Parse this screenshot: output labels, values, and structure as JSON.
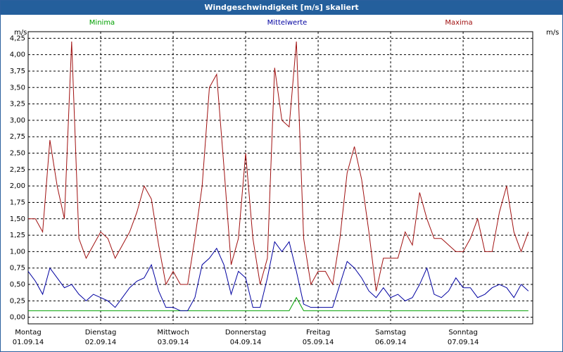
{
  "chart_data": {
    "type": "line",
    "title": "Windgeschwindigkeit [m/s] skaliert",
    "unit": "m/s",
    "grid": true,
    "xlim": [
      0,
      6.96
    ],
    "xticks": [
      {
        "value": 0,
        "label": "Montag\n01.09.14"
      },
      {
        "value": 1,
        "label": "Dienstag\n02.09.14"
      },
      {
        "value": 2,
        "label": "Mittwoch\n03.09.14"
      },
      {
        "value": 3,
        "label": "Donnerstag\n04.09.14"
      },
      {
        "value": 4,
        "label": "Freitag\n05.09.14"
      },
      {
        "value": 5,
        "label": "Samstag\n06.09.14"
      },
      {
        "value": 6,
        "label": "Sonntag\n07.09.14"
      }
    ],
    "ylim": [
      -0.1,
      4.35
    ],
    "yticks": [
      {
        "value": 0,
        "label": "0,00"
      },
      {
        "value": 0.25,
        "label": "0,25"
      },
      {
        "value": 0.5,
        "label": "0,50"
      },
      {
        "value": 0.75,
        "label": "0,75"
      },
      {
        "value": 1,
        "label": "1,00"
      },
      {
        "value": 1.25,
        "label": "1,25"
      },
      {
        "value": 1.5,
        "label": "1,50"
      },
      {
        "value": 1.75,
        "label": "1,75"
      },
      {
        "value": 2,
        "label": "2,00"
      },
      {
        "value": 2.25,
        "label": "2,25"
      },
      {
        "value": 2.5,
        "label": "2,50"
      },
      {
        "value": 2.75,
        "label": "2,75"
      },
      {
        "value": 3,
        "label": "3,00"
      },
      {
        "value": 3.25,
        "label": "3,25"
      },
      {
        "value": 3.5,
        "label": "3,50"
      },
      {
        "value": 3.75,
        "label": "3,75"
      },
      {
        "value": 4,
        "label": "4,00"
      },
      {
        "value": 4.25,
        "label": "4,25"
      }
    ],
    "x": [
      0,
      0.1,
      0.2,
      0.3,
      0.4,
      0.5,
      0.6,
      0.7,
      0.8,
      0.9,
      1,
      1.1,
      1.2,
      1.3,
      1.4,
      1.5,
      1.6,
      1.7,
      1.8,
      1.9,
      2,
      2.1,
      2.2,
      2.3,
      2.4,
      2.5,
      2.6,
      2.7,
      2.8,
      2.9,
      3,
      3.1,
      3.2,
      3.3,
      3.4,
      3.5,
      3.6,
      3.7,
      3.8,
      3.9,
      4,
      4.1,
      4.2,
      4.3,
      4.4,
      4.5,
      4.6,
      4.7,
      4.8,
      4.9,
      5,
      5.1,
      5.2,
      5.3,
      5.4,
      5.5,
      5.6,
      5.7,
      5.8,
      5.9,
      6,
      6.1,
      6.2,
      6.3,
      6.4,
      6.5,
      6.6,
      6.7,
      6.8,
      6.9
    ],
    "series": [
      {
        "name": "Minima",
        "color": "#00a000",
        "values": [
          0.1,
          0.1,
          0.1,
          0.1,
          0.1,
          0.1,
          0.1,
          0.1,
          0.1,
          0.1,
          0.1,
          0.1,
          0.1,
          0.1,
          0.1,
          0.1,
          0.1,
          0.1,
          0.1,
          0.1,
          0.1,
          0.1,
          0.1,
          0.1,
          0.1,
          0.1,
          0.1,
          0.1,
          0.1,
          0.1,
          0.1,
          0.1,
          0.1,
          0.1,
          0.1,
          0.1,
          0.1,
          0.3,
          0.1,
          0.1,
          0.1,
          0.1,
          0.1,
          0.1,
          0.1,
          0.1,
          0.1,
          0.1,
          0.1,
          0.1,
          0.1,
          0.1,
          0.1,
          0.1,
          0.1,
          0.1,
          0.1,
          0.1,
          0.1,
          0.1,
          0.1,
          0.1,
          0.1,
          0.1,
          0.1,
          0.1,
          0.1,
          0.1,
          0.1,
          0.1
        ]
      },
      {
        "name": "Mittelwerte",
        "color": "#0000a0",
        "values": [
          0.7,
          0.55,
          0.35,
          0.75,
          0.6,
          0.45,
          0.5,
          0.35,
          0.25,
          0.35,
          0.3,
          0.25,
          0.15,
          0.3,
          0.45,
          0.55,
          0.6,
          0.8,
          0.4,
          0.15,
          0.15,
          0.1,
          0.1,
          0.3,
          0.8,
          0.9,
          1.05,
          0.8,
          0.35,
          0.7,
          0.6,
          0.15,
          0.15,
          0.6,
          1.15,
          1.0,
          1.15,
          0.7,
          0.2,
          0.15,
          0.15,
          0.15,
          0.15,
          0.5,
          0.85,
          0.75,
          0.6,
          0.4,
          0.3,
          0.45,
          0.3,
          0.35,
          0.25,
          0.3,
          0.5,
          0.75,
          0.35,
          0.3,
          0.4,
          0.6,
          0.45,
          0.45,
          0.3,
          0.35,
          0.45,
          0.5,
          0.45,
          0.3,
          0.5,
          0.4
        ]
      },
      {
        "name": "Maxima",
        "color": "#a01010",
        "values": [
          1.5,
          1.5,
          1.3,
          2.7,
          2.0,
          1.5,
          4.2,
          1.2,
          0.9,
          1.1,
          1.3,
          1.2,
          0.9,
          1.1,
          1.3,
          1.6,
          2.0,
          1.8,
          1.1,
          0.5,
          0.7,
          0.5,
          0.5,
          1.2,
          2.0,
          3.5,
          3.7,
          2.3,
          0.8,
          1.2,
          2.5,
          1.2,
          0.5,
          0.9,
          3.8,
          3.0,
          2.9,
          4.2,
          1.2,
          0.5,
          0.7,
          0.7,
          0.5,
          1.2,
          2.2,
          2.6,
          2.1,
          1.3,
          0.4,
          0.9,
          0.9,
          0.9,
          1.3,
          1.1,
          1.9,
          1.5,
          1.2,
          1.2,
          1.1,
          1.0,
          1.0,
          1.2,
          1.5,
          1.0,
          1.0,
          1.6,
          2.0,
          1.3,
          1.0,
          1.3
        ]
      }
    ]
  }
}
